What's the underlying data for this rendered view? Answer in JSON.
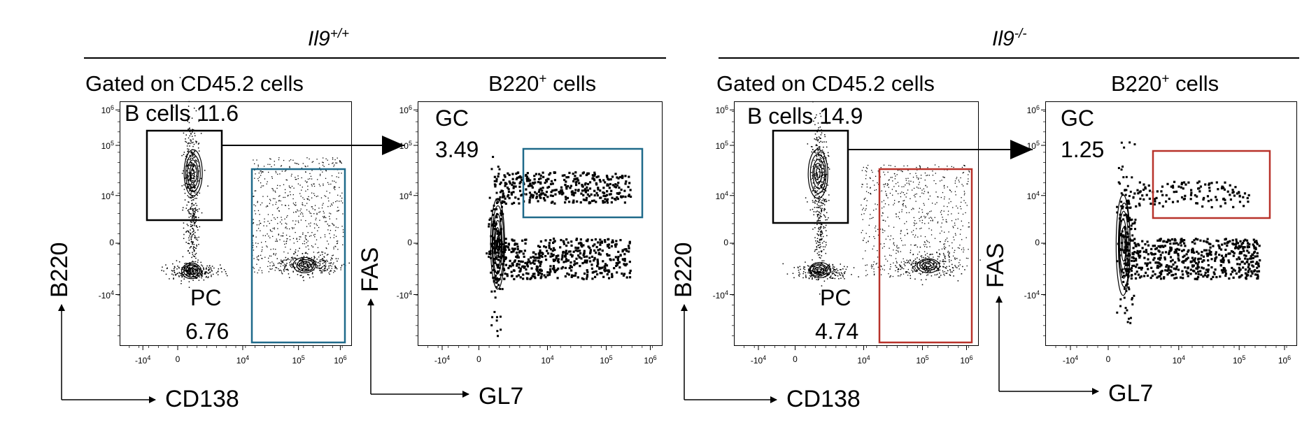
{
  "groups": [
    {
      "title_main": "Il9",
      "title_sup": "+/+"
    },
    {
      "title_main": "Il9",
      "title_sup": "-/-"
    }
  ],
  "chart_data": [
    {
      "type": "scatter",
      "group": "Il9+/+",
      "title": "Gated on  CD45.2 cells",
      "xlabel": "CD138",
      "ylabel": "B220",
      "x_ticks": [
        {
          "base": "-10",
          "exp": "4"
        },
        {
          "base": "0",
          "exp": ""
        },
        {
          "base": "10",
          "exp": "4"
        },
        {
          "base": "10",
          "exp": "5"
        },
        {
          "base": "10",
          "exp": "6"
        }
      ],
      "y_ticks": [
        {
          "base": "10",
          "exp": "6"
        },
        {
          "base": "10",
          "exp": "5"
        },
        {
          "base": "10",
          "exp": "4"
        },
        {
          "base": "0",
          "exp": ""
        },
        {
          "base": "-10",
          "exp": "4"
        }
      ],
      "gates": [
        {
          "label": "B cells",
          "value": "11.6",
          "color": "#000000"
        },
        {
          "label": "PC",
          "value": "6.76",
          "color": "#1f6a8a"
        }
      ]
    },
    {
      "type": "scatter",
      "group": "Il9+/+",
      "title_main": "B220",
      "title_sup": "+",
      "title_rest": " cells",
      "xlabel": "GL7",
      "ylabel": "FAS",
      "x_ticks": [
        {
          "base": "-10",
          "exp": "4"
        },
        {
          "base": "0",
          "exp": ""
        },
        {
          "base": "10",
          "exp": "4"
        },
        {
          "base": "10",
          "exp": "5"
        },
        {
          "base": "10",
          "exp": "6"
        }
      ],
      "y_ticks": [
        {
          "base": "10",
          "exp": "6"
        },
        {
          "base": "10",
          "exp": "5"
        },
        {
          "base": "10",
          "exp": "4"
        },
        {
          "base": "0",
          "exp": ""
        },
        {
          "base": "-10",
          "exp": "4"
        }
      ],
      "gates": [
        {
          "label": "GC",
          "value": "3.49",
          "color": "#1f6a8a"
        }
      ]
    },
    {
      "type": "scatter",
      "group": "Il9-/-",
      "title": "Gated on  CD45.2 cells",
      "xlabel": "CD138",
      "ylabel": "B220",
      "x_ticks": [
        {
          "base": "-10",
          "exp": "4"
        },
        {
          "base": "0",
          "exp": ""
        },
        {
          "base": "10",
          "exp": "4"
        },
        {
          "base": "10",
          "exp": "5"
        },
        {
          "base": "10",
          "exp": "6"
        }
      ],
      "y_ticks": [
        {
          "base": "10",
          "exp": "6"
        },
        {
          "base": "10",
          "exp": "5"
        },
        {
          "base": "10",
          "exp": "4"
        },
        {
          "base": "0",
          "exp": ""
        },
        {
          "base": "-10",
          "exp": "4"
        }
      ],
      "gates": [
        {
          "label": "B cells",
          "value": "14.9",
          "color": "#000000"
        },
        {
          "label": "PC",
          "value": "4.74",
          "color": "#b8322a"
        }
      ]
    },
    {
      "type": "scatter",
      "group": "Il9-/-",
      "title_main": "B220",
      "title_sup": "+",
      "title_rest": " cells",
      "xlabel": "GL7",
      "ylabel": "FAS",
      "x_ticks": [
        {
          "base": "-10",
          "exp": "4"
        },
        {
          "base": "0",
          "exp": ""
        },
        {
          "base": "10",
          "exp": "4"
        },
        {
          "base": "10",
          "exp": "5"
        },
        {
          "base": "10",
          "exp": "6"
        }
      ],
      "y_ticks": [
        {
          "base": "10",
          "exp": "6"
        },
        {
          "base": "10",
          "exp": "5"
        },
        {
          "base": "10",
          "exp": "4"
        },
        {
          "base": "0",
          "exp": ""
        },
        {
          "base": "-10",
          "exp": "4"
        }
      ],
      "gates": [
        {
          "label": "GC",
          "value": "1.25",
          "color": "#b8322a"
        }
      ]
    }
  ]
}
